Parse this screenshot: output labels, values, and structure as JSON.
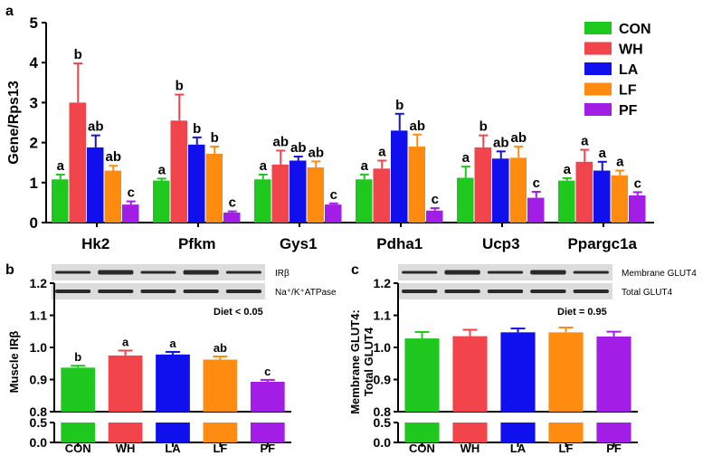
{
  "colors": {
    "series": [
      "#1fc81f",
      "#f2454b",
      "#1010ee",
      "#ff8c10",
      "#a21de6"
    ],
    "axis": "#000000",
    "blot_bg": "#dcdcdc",
    "blot_band": "#2a2a2a"
  },
  "chart_data": [
    {
      "panel": "a",
      "type": "bar",
      "title": "",
      "xlabel": "",
      "ylabel": "Gene/Rps13",
      "ylim": [
        0,
        5
      ],
      "yticks": [
        "0",
        "1",
        "2",
        "3",
        "4",
        "5"
      ],
      "categories": [
        "Hk2",
        "Pfkm",
        "Gys1",
        "Pdha1",
        "Ucp3",
        "Ppargc1a"
      ],
      "legend": {
        "placement": "top-right",
        "entries": [
          "CON",
          "WH",
          "LA",
          "LF",
          "PF"
        ]
      },
      "series": [
        {
          "name": "CON",
          "values": [
            1.08,
            1.05,
            1.08,
            1.08,
            1.12,
            1.05
          ],
          "errors": [
            0.12,
            0.05,
            0.12,
            0.12,
            0.28,
            0.06
          ],
          "labels": [
            "a",
            "a",
            "a",
            "a",
            "a",
            "a"
          ]
        },
        {
          "name": "WH",
          "values": [
            3.0,
            2.55,
            1.45,
            1.35,
            1.88,
            1.52
          ],
          "errors": [
            0.98,
            0.65,
            0.35,
            0.2,
            0.3,
            0.3
          ],
          "labels": [
            "b",
            "b",
            "ab",
            "a",
            "b",
            "a"
          ]
        },
        {
          "name": "LA",
          "values": [
            1.88,
            1.95,
            1.55,
            2.3,
            1.6,
            1.3
          ],
          "errors": [
            0.3,
            0.18,
            0.1,
            0.42,
            0.18,
            0.22
          ],
          "labels": [
            "ab",
            "b",
            "ab",
            "b",
            "ab",
            "a"
          ]
        },
        {
          "name": "LF",
          "values": [
            1.3,
            1.72,
            1.38,
            1.9,
            1.62,
            1.18
          ],
          "errors": [
            0.12,
            0.18,
            0.15,
            0.3,
            0.28,
            0.12
          ],
          "labels": [
            "ab",
            "b",
            "ab",
            "ab",
            "ab",
            "a"
          ]
        },
        {
          "name": "PF",
          "values": [
            0.45,
            0.25,
            0.45,
            0.3,
            0.62,
            0.68
          ],
          "errors": [
            0.08,
            0.03,
            0.03,
            0.06,
            0.15,
            0.08
          ],
          "labels": [
            "c",
            "c",
            "c",
            "c",
            "c",
            "c"
          ]
        }
      ]
    },
    {
      "panel": "b",
      "type": "bar",
      "ylabel": "Muscle IRβ",
      "ylim": [
        0.8,
        1.2
      ],
      "yticks": [
        "0.8",
        "0.9",
        "1.0",
        "1.1",
        "1.2"
      ],
      "broken_axis_ticks": [
        "0.0",
        "0.5"
      ],
      "categories": [
        "CON",
        "WH",
        "LA",
        "LF",
        "PF"
      ],
      "values": [
        0.937,
        0.975,
        0.978,
        0.962,
        0.893
      ],
      "errors": [
        0.006,
        0.015,
        0.008,
        0.01,
        0.006
      ],
      "labels": [
        "b",
        "a",
        "a",
        "ab",
        "c"
      ],
      "annotation": "Diet < 0.05",
      "blot_labels": [
        "IRβ",
        "Na⁺/K⁺ATPase"
      ]
    },
    {
      "panel": "c",
      "type": "bar",
      "ylabel": [
        "Membrane GLUT4:",
        "Total GLUT4"
      ],
      "ylim": [
        0.8,
        1.2
      ],
      "yticks": [
        "0.8",
        "0.9",
        "1.0",
        "1.1",
        "1.2"
      ],
      "broken_axis_ticks": [
        "0.0",
        "0.5"
      ],
      "categories": [
        "CON",
        "WH",
        "LA",
        "LF",
        "PF"
      ],
      "values": [
        1.028,
        1.035,
        1.047,
        1.047,
        1.034
      ],
      "errors": [
        0.02,
        0.02,
        0.012,
        0.015,
        0.015
      ],
      "labels": [],
      "annotation": "Diet  = 0.95",
      "blot_labels": [
        "Membrane GLUT4",
        "Total GLUT4"
      ]
    }
  ],
  "panel_letters": [
    "a",
    "b",
    "c"
  ]
}
